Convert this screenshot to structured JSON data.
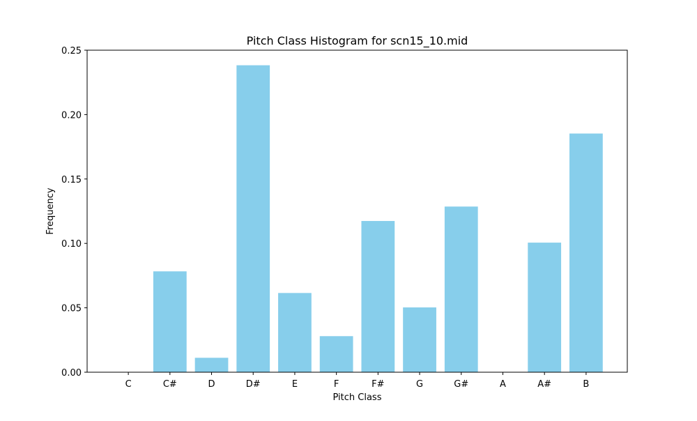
{
  "chart_data": {
    "type": "bar",
    "title": "Pitch Class Histogram for scn15_10.mid",
    "xlabel": "Pitch Class",
    "ylabel": "Frequency",
    "categories": [
      "C",
      "C#",
      "D",
      "D#",
      "E",
      "F",
      "F#",
      "G",
      "G#",
      "A",
      "A#",
      "B"
    ],
    "values": [
      0.0,
      0.0783,
      0.0112,
      0.2383,
      0.0615,
      0.028,
      0.1174,
      0.0503,
      0.1286,
      0.0,
      0.1006,
      0.1853
    ],
    "ylim": [
      0,
      0.25
    ],
    "yticks": [
      "0.00",
      "0.05",
      "0.10",
      "0.15",
      "0.20",
      "0.25"
    ],
    "ytick_values": [
      0,
      0.05,
      0.1,
      0.15,
      0.2,
      0.25
    ],
    "bar_color": "#87ceeb",
    "grid": false,
    "legend": "none"
  }
}
